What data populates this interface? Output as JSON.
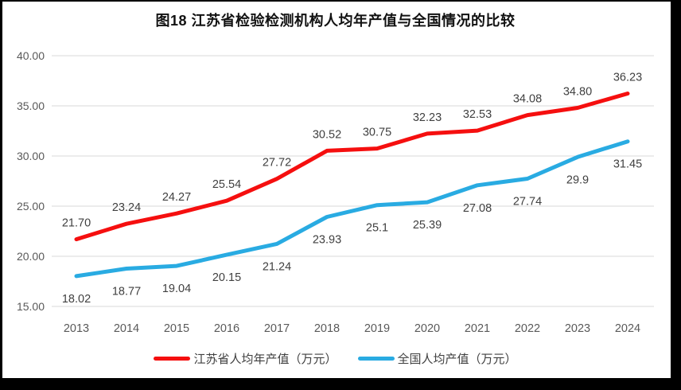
{
  "chart_data": {
    "type": "line",
    "title": "图18  江苏省检验检测机构人均年产值与全国情况的比较",
    "categories": [
      "2013",
      "2014",
      "2015",
      "2016",
      "2017",
      "2018",
      "2019",
      "2020",
      "2021",
      "2022",
      "2023",
      "2024"
    ],
    "series": [
      {
        "name": "江苏省人均年产值（万元）",
        "color": "#f50f0f",
        "values": [
          21.7,
          23.24,
          24.27,
          25.54,
          27.72,
          30.52,
          30.75,
          32.23,
          32.53,
          34.08,
          34.8,
          36.23
        ],
        "labels": [
          "21.70",
          "23.24",
          "24.27",
          "25.54",
          "27.72",
          "30.52",
          "30.75",
          "32.23",
          "32.53",
          "34.08",
          "34.80",
          "36.23"
        ]
      },
      {
        "name": "全国人均产值（万元）",
        "color": "#29abe2",
        "values": [
          18.02,
          18.77,
          19.04,
          20.15,
          21.24,
          23.93,
          25.1,
          25.39,
          27.08,
          27.74,
          29.9,
          31.45
        ],
        "labels": [
          "18.02",
          "18.77",
          "19.04",
          "20.15",
          "21.24",
          "23.93",
          "25.1",
          "25.39",
          "27.08",
          "27.74",
          "29.9",
          "31.45"
        ]
      }
    ],
    "yticks": [
      "15.00",
      "20.00",
      "25.00",
      "30.00",
      "35.00",
      "40.00"
    ],
    "ylim": [
      15,
      40
    ],
    "ytick_step": 5,
    "grid": true,
    "legend_position": "bottom",
    "gridline_color": "#d9d9d9",
    "axis_text_color": "#595959",
    "data_label_color": "#404040"
  }
}
